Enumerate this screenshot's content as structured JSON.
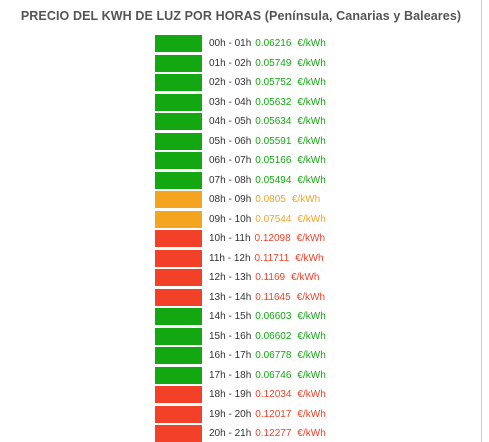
{
  "title": "PRECIO DEL KWH DE LUZ POR HORAS (Península, Canarias y Baleares)",
  "colors": {
    "low": "#13a812",
    "mid": "#f5a420",
    "high": "#f24128"
  },
  "rows": [
    {
      "hours": "00h - 01h",
      "price": "0.06216",
      "unit": "€/kWh",
      "level": "low"
    },
    {
      "hours": "01h - 02h",
      "price": "0.05749",
      "unit": "€/kWh",
      "level": "low"
    },
    {
      "hours": "02h - 03h",
      "price": "0.05752",
      "unit": "€/kWh",
      "level": "low"
    },
    {
      "hours": "03h - 04h",
      "price": "0.05632",
      "unit": "€/kWh",
      "level": "low"
    },
    {
      "hours": "04h - 05h",
      "price": "0.05634",
      "unit": "€/kWh",
      "level": "low"
    },
    {
      "hours": "05h - 06h",
      "price": "0.05591",
      "unit": "€/kWh",
      "level": "low"
    },
    {
      "hours": "06h - 07h",
      "price": "0.05166",
      "unit": "€/kWh",
      "level": "low"
    },
    {
      "hours": "07h - 08h",
      "price": "0.05494",
      "unit": "€/kWh",
      "level": "low"
    },
    {
      "hours": "08h - 09h",
      "price": "0.0805",
      "unit": "€/kWh",
      "level": "mid"
    },
    {
      "hours": "09h - 10h",
      "price": "0.07544",
      "unit": "€/kWh",
      "level": "mid"
    },
    {
      "hours": "10h - 11h",
      "price": "0.12098",
      "unit": "€/kWh",
      "level": "high"
    },
    {
      "hours": "11h - 12h",
      "price": "0.11711",
      "unit": "€/kWh",
      "level": "high"
    },
    {
      "hours": "12h - 13h",
      "price": "0.1169",
      "unit": "€/kWh",
      "level": "high"
    },
    {
      "hours": "13h - 14h",
      "price": "0.11645",
      "unit": "€/kWh",
      "level": "high"
    },
    {
      "hours": "14h - 15h",
      "price": "0.06603",
      "unit": "€/kWh",
      "level": "low"
    },
    {
      "hours": "15h - 16h",
      "price": "0.06602",
      "unit": "€/kWh",
      "level": "low"
    },
    {
      "hours": "16h - 17h",
      "price": "0.06778",
      "unit": "€/kWh",
      "level": "low"
    },
    {
      "hours": "17h - 18h",
      "price": "0.06746",
      "unit": "€/kWh",
      "level": "low"
    },
    {
      "hours": "18h - 19h",
      "price": "0.12034",
      "unit": "€/kWh",
      "level": "high"
    },
    {
      "hours": "19h - 20h",
      "price": "0.12017",
      "unit": "€/kWh",
      "level": "high"
    },
    {
      "hours": "20h - 21h",
      "price": "0.12277",
      "unit": "€/kWh",
      "level": "high"
    }
  ]
}
